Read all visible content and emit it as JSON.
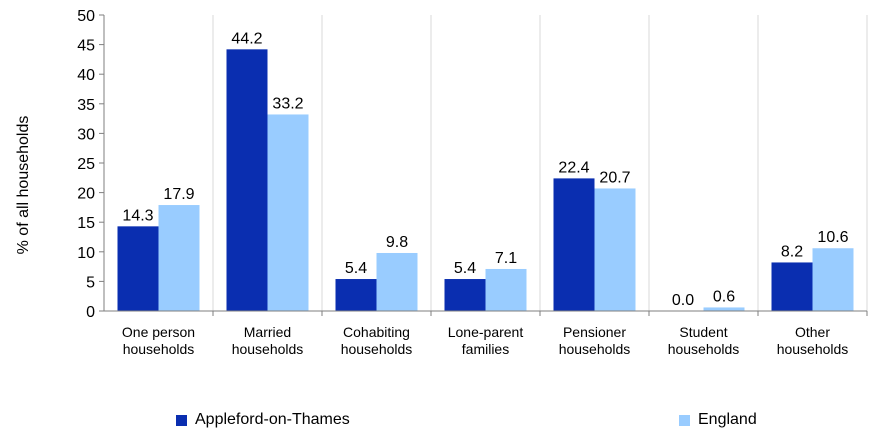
{
  "chart_data": {
    "type": "bar",
    "title": "",
    "xlabel": "",
    "ylabel": "% of all households",
    "ylim": [
      0,
      50
    ],
    "yticks": [
      0,
      5,
      10,
      15,
      20,
      25,
      30,
      35,
      40,
      45,
      50
    ],
    "grid": "vertical separators between categories",
    "legend_position": "bottom",
    "categories": [
      [
        "One person",
        "households"
      ],
      [
        "Married",
        "households"
      ],
      [
        "Cohabiting",
        "households"
      ],
      [
        "Lone-parent",
        "families"
      ],
      [
        "Pensioner",
        "households"
      ],
      [
        "Student",
        "households"
      ],
      [
        "Other",
        "households"
      ]
    ],
    "series": [
      {
        "name": "Appleford-on-Thames",
        "color": "#0A2EB0",
        "values": [
          14.3,
          44.2,
          5.4,
          5.4,
          22.4,
          0.0,
          8.2
        ],
        "labels": [
          "14.3",
          "44.2",
          "5.4",
          "5.4",
          "22.4",
          "0.0",
          "8.2"
        ]
      },
      {
        "name": "England",
        "color": "#99CCFF",
        "values": [
          17.9,
          33.2,
          9.8,
          7.1,
          20.7,
          0.6,
          10.6
        ],
        "labels": [
          "17.9",
          "33.2",
          "9.8",
          "7.1",
          "20.7",
          "0.6",
          "10.6"
        ]
      }
    ]
  }
}
